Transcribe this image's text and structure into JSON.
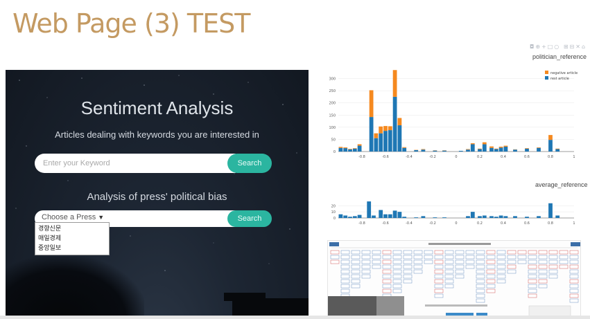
{
  "page": {
    "title": "Web Page (3) TEST"
  },
  "hero": {
    "title": "Sentiment Analysis",
    "subtitle": "Articles dealing with keywords you are interested in",
    "search": {
      "placeholder": "Enter your Keyword",
      "button": "Search"
    },
    "press_heading": "Analysis of press' political bias",
    "press": {
      "selected": "Choose a Press",
      "button": "Search",
      "options": [
        "경향신문",
        "매일경제",
        "중앙일보"
      ]
    }
  },
  "colors": {
    "accent": "#c49a62",
    "button": "#2bb5a0",
    "negative": "#f5891f",
    "rest": "#1f77b4"
  },
  "charts": {
    "politician": {
      "title": "politician_reference",
      "legend": {
        "negative": "negative article",
        "rest": "rest article"
      }
    },
    "average": {
      "title": "average_reference"
    }
  },
  "chart_data": [
    {
      "type": "bar",
      "stacked": true,
      "title": "politician_reference",
      "legend_position": "top-right",
      "xlim": [
        -1,
        1
      ],
      "ylim": [
        0,
        330
      ],
      "x_ticks": [
        "-0.8",
        "-0.6",
        "-0.4",
        "-0.2",
        "0",
        "0.2",
        "0.4",
        "0.6",
        "0.8",
        "1"
      ],
      "y_ticks": [
        "0",
        "50",
        "100",
        "150",
        "200",
        "250",
        "300"
      ],
      "x": [
        -0.98,
        -0.94,
        -0.9,
        -0.86,
        -0.82,
        -0.72,
        -0.68,
        -0.64,
        -0.6,
        -0.56,
        -0.52,
        -0.48,
        -0.44,
        -0.34,
        -0.28,
        -0.18,
        -0.1,
        0.04,
        0.1,
        0.14,
        0.2,
        0.24,
        0.3,
        0.34,
        0.38,
        0.42,
        0.5,
        0.6,
        0.7,
        0.8,
        0.86
      ],
      "series": [
        {
          "name": "rest article",
          "values": [
            15,
            14,
            9,
            12,
            24,
            142,
            55,
            75,
            85,
            88,
            225,
            108,
            15,
            6,
            8,
            4,
            4,
            3,
            8,
            30,
            10,
            30,
            15,
            10,
            16,
            20,
            8,
            12,
            15,
            48,
            10
          ]
        },
        {
          "name": "negative article",
          "values": [
            4,
            3,
            2,
            2,
            6,
            110,
            20,
            28,
            20,
            16,
            110,
            30,
            3,
            1,
            2,
            1,
            1,
            0,
            2,
            4,
            2,
            8,
            6,
            2,
            4,
            4,
            1,
            2,
            2,
            20,
            2
          ]
        }
      ]
    },
    {
      "type": "bar",
      "title": "average_reference",
      "xlim": [
        -1,
        1
      ],
      "ylim": [
        0,
        35
      ],
      "x_ticks": [
        "-0.8",
        "-0.6",
        "-0.4",
        "-0.2",
        "0",
        "0.2",
        "0.4",
        "0.6",
        "0.8",
        "1"
      ],
      "y_ticks": [
        "0",
        "10",
        "20"
      ],
      "x": [
        -0.98,
        -0.94,
        -0.9,
        -0.86,
        -0.82,
        -0.74,
        -0.7,
        -0.64,
        -0.6,
        -0.56,
        -0.52,
        -0.48,
        -0.44,
        -0.34,
        -0.28,
        -0.18,
        -0.1,
        0.04,
        0.1,
        0.14,
        0.2,
        0.24,
        0.3,
        0.34,
        0.38,
        0.42,
        0.5,
        0.6,
        0.7,
        0.8,
        0.86
      ],
      "values": [
        6,
        4,
        2,
        3,
        5,
        27,
        4,
        13,
        6,
        6,
        12,
        10,
        2,
        1,
        3,
        1,
        1,
        0,
        3,
        10,
        3,
        4,
        3,
        2,
        4,
        3,
        3,
        2,
        3,
        24,
        4
      ]
    }
  ]
}
